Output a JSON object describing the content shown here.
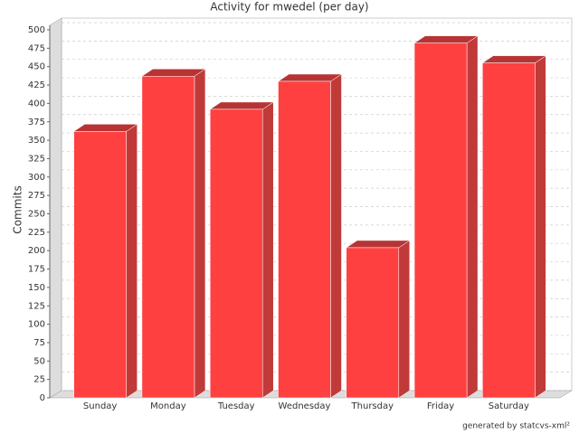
{
  "chart_data": {
    "type": "bar3d",
    "title": "Activity for mwedel (per day)",
    "y_label": "Commits",
    "footer": "generated by statcvs-xml²",
    "categories": [
      "Sunday",
      "Monday",
      "Tuesday",
      "Wednesday",
      "Thursday",
      "Friday",
      "Saturday"
    ],
    "values": [
      362,
      437,
      392,
      430,
      204,
      482,
      455
    ],
    "color": "#ff4040",
    "ylim": [
      0,
      500
    ],
    "yticks": [
      0,
      25,
      50,
      75,
      100,
      125,
      150,
      175,
      200,
      225,
      250,
      275,
      300,
      325,
      350,
      375,
      400,
      425,
      450,
      475,
      500
    ],
    "grid": true
  }
}
